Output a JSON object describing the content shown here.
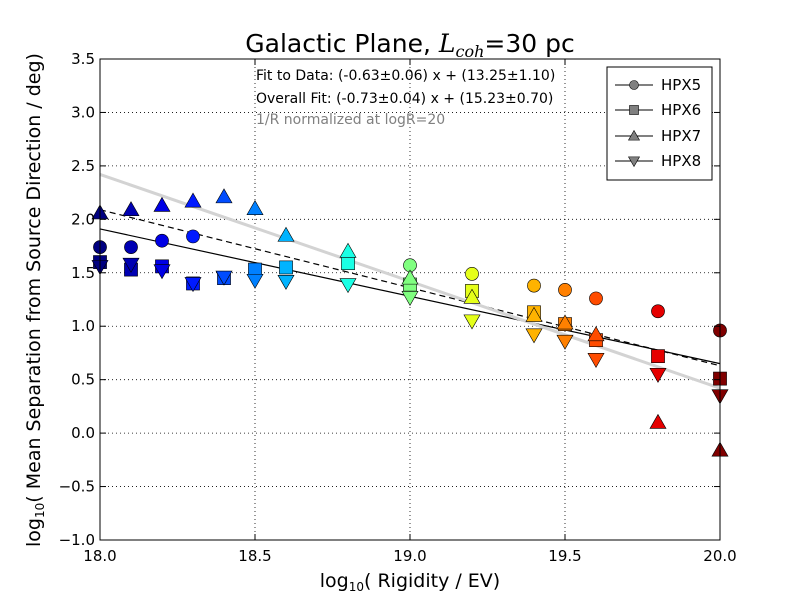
{
  "chart_data": {
    "type": "scatter",
    "title": "Galactic Plane, L_coh=30 pc",
    "title_parts": {
      "pre": "Galactic Plane, ",
      "var": "L",
      "sub": "coh",
      "post": "=30 pc"
    },
    "xlabel": "log10( Rigidity / EV)",
    "xlabel_parts": {
      "pre": "log",
      "sub": "10",
      "post": "( Rigidity / EV)"
    },
    "ylabel": "log10( Mean Separation from Source Direction / deg)",
    "ylabel_parts": {
      "pre": "log",
      "sub": "10",
      "post": "( Mean Separation from Source Direction / deg)"
    },
    "xlim": [
      18.0,
      20.0
    ],
    "ylim": [
      -1.0,
      3.5
    ],
    "xticks": [
      18.0,
      18.5,
      19.0,
      19.5,
      20.0
    ],
    "xtick_labels": [
      "18.0",
      "18.5",
      "19.0",
      "19.5",
      "20.0"
    ],
    "yticks": [
      -1.0,
      -0.5,
      0.0,
      0.5,
      1.0,
      1.5,
      2.0,
      2.5,
      3.0,
      3.5
    ],
    "ytick_labels": [
      "−1.0",
      "−0.5",
      "0.0",
      "0.5",
      "1.0",
      "1.5",
      "2.0",
      "2.5",
      "3.0",
      "3.5"
    ],
    "grid": true,
    "legend_position": "top-right",
    "color_scale": "jet",
    "annotations": [
      {
        "text": "Fit to Data: (-0.63±0.06) x + (13.25±1.10)",
        "color": "#000000"
      },
      {
        "text": "Overall Fit: (-0.73±0.04) x + (15.23±0.70)",
        "color": "#000000"
      },
      {
        "text": "1/R normalized at logR=20",
        "color": "#808080"
      }
    ],
    "lines": [
      {
        "name": "Fit to Data",
        "slope": -0.63,
        "intercept": 13.25,
        "color": "#000000",
        "style": "solid"
      },
      {
        "name": "Overall Fit",
        "slope": -0.73,
        "intercept": 15.23,
        "color": "#000000",
        "style": "dashed"
      },
      {
        "name": "1/R normalized at logR=20",
        "x": [
          18.0,
          20.0
        ],
        "y": [
          2.42,
          0.42
        ],
        "color": "#d3d3d3",
        "style": "solid"
      }
    ],
    "series": [
      {
        "name": "HPX5",
        "marker": "circle",
        "x": [
          18.0,
          18.1,
          18.2,
          18.3,
          19.0,
          19.2,
          19.4,
          19.5,
          19.6,
          19.8,
          20.0
        ],
        "y": [
          1.74,
          1.74,
          1.8,
          1.84,
          1.57,
          1.49,
          1.38,
          1.34,
          1.26,
          1.14,
          0.96
        ]
      },
      {
        "name": "HPX6",
        "marker": "square",
        "x": [
          18.0,
          18.1,
          18.2,
          18.3,
          18.4,
          18.5,
          18.6,
          18.8,
          19.0,
          19.2,
          19.4,
          19.5,
          19.6,
          19.8,
          20.0
        ],
        "y": [
          1.6,
          1.53,
          1.56,
          1.4,
          1.45,
          1.53,
          1.55,
          1.59,
          1.39,
          1.33,
          1.13,
          1.02,
          0.87,
          0.72,
          0.51
        ]
      },
      {
        "name": "HPX7",
        "marker": "triangle-up",
        "x": [
          18.0,
          18.1,
          18.2,
          18.3,
          18.4,
          18.5,
          18.6,
          18.8,
          19.0,
          19.2,
          19.4,
          19.5,
          19.6,
          19.8,
          20.0
        ],
        "y": [
          2.06,
          2.09,
          2.13,
          2.17,
          2.21,
          2.1,
          1.85,
          1.7,
          1.45,
          1.27,
          1.1,
          1.03,
          0.92,
          0.1,
          -0.16
        ]
      },
      {
        "name": "HPX8",
        "marker": "triangle-down",
        "x": [
          18.0,
          18.1,
          18.2,
          18.3,
          18.4,
          18.5,
          18.6,
          18.8,
          19.0,
          19.2,
          19.4,
          19.5,
          19.6,
          19.8,
          20.0
        ],
        "y": [
          1.56,
          1.58,
          1.52,
          1.4,
          1.46,
          1.43,
          1.42,
          1.39,
          1.27,
          1.05,
          0.92,
          0.86,
          0.69,
          0.55,
          0.35
        ]
      }
    ]
  }
}
